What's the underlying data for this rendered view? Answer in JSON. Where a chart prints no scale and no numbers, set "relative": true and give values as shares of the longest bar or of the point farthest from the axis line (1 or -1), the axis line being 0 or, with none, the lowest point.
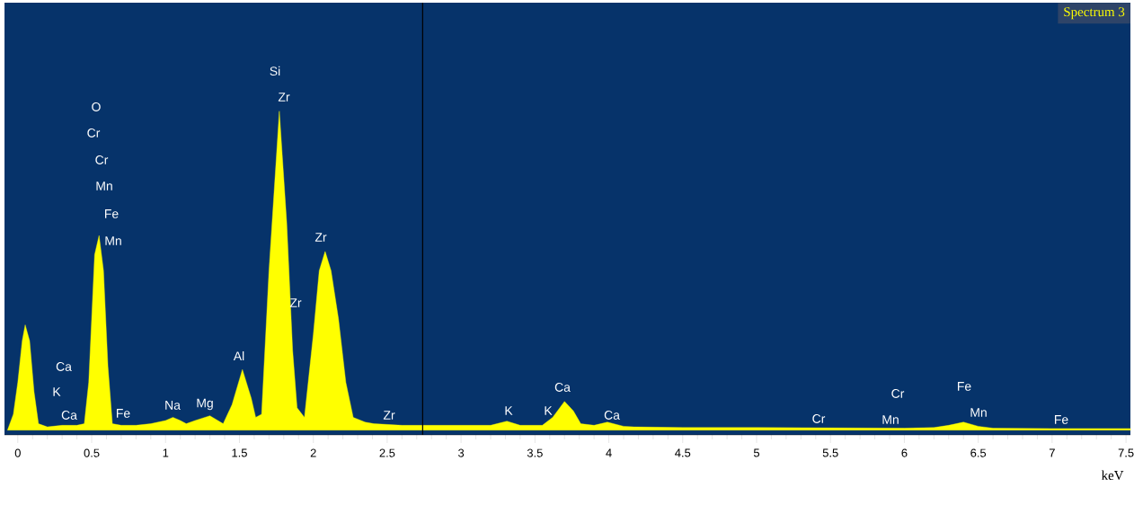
{
  "chart_data": {
    "type": "area",
    "title": "Spectrum 3",
    "xlabel": "keV",
    "relative": true,
    "color": "#ffff00",
    "x": [
      -0.07,
      -0.03,
      0.0,
      0.03,
      0.05,
      0.08,
      0.11,
      0.14,
      0.2,
      0.3,
      0.4,
      0.45,
      0.48,
      0.52,
      0.55,
      0.58,
      0.61,
      0.64,
      0.7,
      0.8,
      0.9,
      1.0,
      1.05,
      1.1,
      1.14,
      1.2,
      1.3,
      1.39,
      1.45,
      1.52,
      1.58,
      1.61,
      1.65,
      1.7,
      1.77,
      1.82,
      1.86,
      1.89,
      1.94,
      2.0,
      2.04,
      2.08,
      2.12,
      2.17,
      2.22,
      2.27,
      2.35,
      2.41,
      2.6,
      2.8,
      3.0,
      3.2,
      3.31,
      3.4,
      3.55,
      3.62,
      3.7,
      3.76,
      3.81,
      3.9,
      3.99,
      4.1,
      4.17,
      4.5,
      5.0,
      5.5,
      6.0,
      6.2,
      6.3,
      6.4,
      6.5,
      6.6,
      7.0,
      7.53
    ],
    "values": [
      0.0,
      0.05,
      0.15,
      0.28,
      0.33,
      0.28,
      0.12,
      0.02,
      0.01,
      0.015,
      0.015,
      0.02,
      0.15,
      0.55,
      0.61,
      0.5,
      0.2,
      0.02,
      0.015,
      0.015,
      0.02,
      0.03,
      0.04,
      0.03,
      0.02,
      0.03,
      0.045,
      0.02,
      0.08,
      0.19,
      0.1,
      0.04,
      0.05,
      0.5,
      1.0,
      0.65,
      0.25,
      0.07,
      0.04,
      0.3,
      0.5,
      0.56,
      0.5,
      0.35,
      0.15,
      0.04,
      0.025,
      0.02,
      0.015,
      0.015,
      0.015,
      0.015,
      0.028,
      0.015,
      0.015,
      0.04,
      0.09,
      0.06,
      0.02,
      0.015,
      0.025,
      0.012,
      0.01,
      0.008,
      0.008,
      0.007,
      0.006,
      0.008,
      0.015,
      0.025,
      0.012,
      0.006,
      0.005,
      0.005
    ],
    "annotations": [
      "O",
      "Cr",
      "Cr",
      "Mn",
      "Fe",
      "Mn",
      "Ca",
      "K",
      "Ca",
      "Fe",
      "Na",
      "Mg",
      "Al",
      "Si",
      "Zr",
      "Zr",
      "Zr",
      "Zr",
      "K",
      "K",
      "Ca",
      "Ca",
      "Cr",
      "Cr",
      "Mn",
      "Fe",
      "Mn",
      "Fe"
    ],
    "xlim": [
      -0.09,
      7.53
    ],
    "xticks": [
      0,
      0.5,
      1,
      1.5,
      2,
      2.5,
      3,
      3.5,
      4,
      4.5,
      5,
      5.5,
      6,
      6.5,
      7,
      7.5
    ],
    "ref_lines": [
      {
        "axis": "x",
        "value": 2.74,
        "color": "#000000"
      }
    ]
  }
}
